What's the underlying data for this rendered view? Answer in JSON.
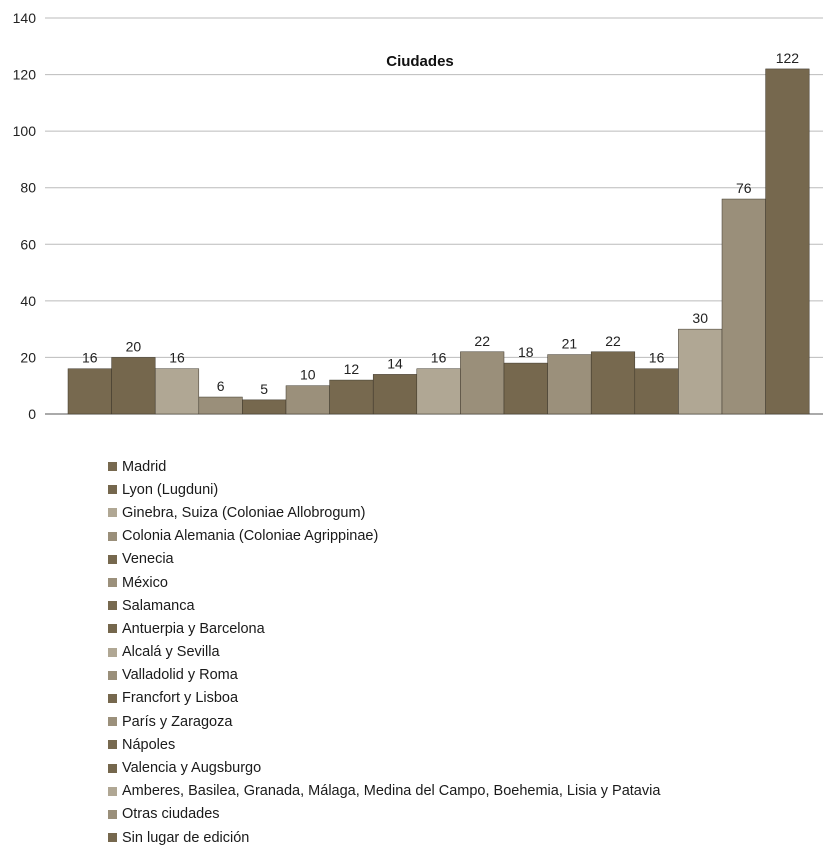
{
  "chart_data": {
    "type": "bar",
    "title": "Ciudades",
    "xlabel": "",
    "ylabel": "",
    "ylim": [
      0,
      140
    ],
    "yticks": [
      0,
      20,
      40,
      60,
      80,
      100,
      120,
      140
    ],
    "grid": true,
    "legend_position": "bottom",
    "series": [
      {
        "name": "Madrid",
        "value": 16,
        "color": "#77694f"
      },
      {
        "name": "Lyon (Lugduni)",
        "value": 20,
        "color": "#75674d"
      },
      {
        "name": "Ginebra, Suiza (Coloniae Allobrogum)",
        "value": 16,
        "color": "#b0a794"
      },
      {
        "name": "Colonia Alemania (Coloniae Agrippinae)",
        "value": 6,
        "color": "#9a8f7a"
      },
      {
        "name": "Venecia",
        "value": 5,
        "color": "#76684e"
      },
      {
        "name": "México",
        "value": 10,
        "color": "#9b907b"
      },
      {
        "name": "Salamanca",
        "value": 12,
        "color": "#77694f"
      },
      {
        "name": "Antuerpia y Barcelona",
        "value": 14,
        "color": "#75674d"
      },
      {
        "name": "Alcalá y Sevilla",
        "value": 16,
        "color": "#b0a794"
      },
      {
        "name": "Valladolid y Roma",
        "value": 22,
        "color": "#9a8f7a"
      },
      {
        "name": "Francfort y Lisboa",
        "value": 18,
        "color": "#76684e"
      },
      {
        "name": "París y Zaragoza",
        "value": 21,
        "color": "#9b907b"
      },
      {
        "name": "Nápoles",
        "value": 22,
        "color": "#77694f"
      },
      {
        "name": "Valencia y Augsburgo",
        "value": 16,
        "color": "#75674d"
      },
      {
        "name": "Amberes, Basilea, Granada, Málaga, Medina del Campo, Boehemia, Lisia y Patavia",
        "value": 30,
        "color": "#b0a794"
      },
      {
        "name": "Otras ciudades",
        "value": 76,
        "color": "#9a8f7a"
      },
      {
        "name": "Sin lugar de edición",
        "value": 122,
        "color": "#76684e"
      }
    ]
  }
}
